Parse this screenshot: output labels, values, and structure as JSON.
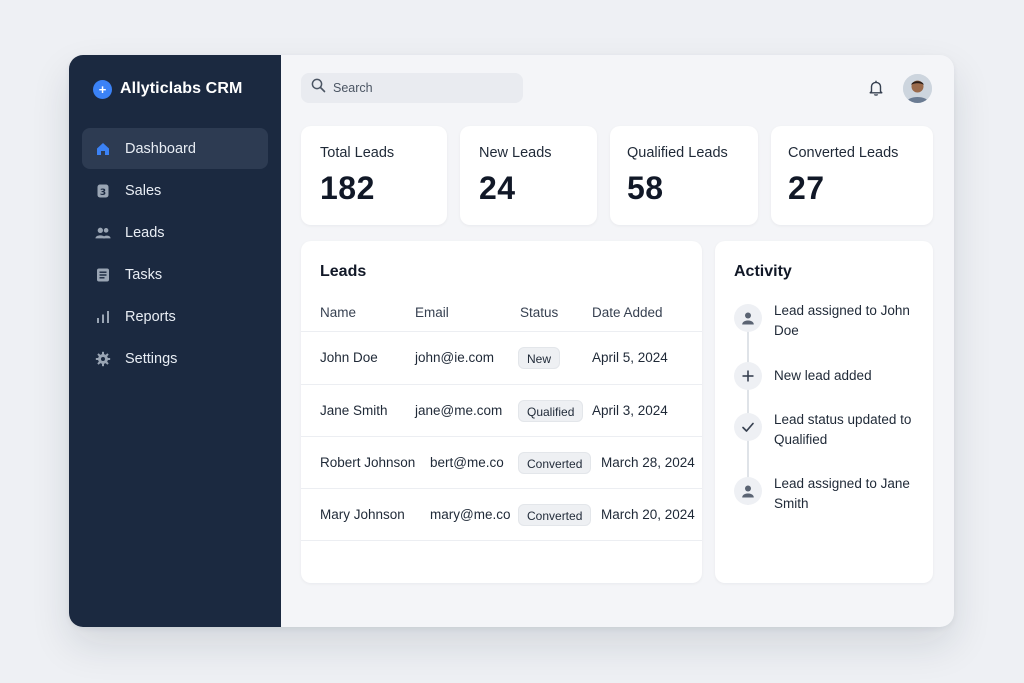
{
  "brand": {
    "name": "Allyticlabs CRM",
    "logo_glyph": "+",
    "accent": "#3b82f6"
  },
  "sidebar": {
    "items": [
      {
        "label": "Dashboard",
        "icon": "home-icon",
        "active": true
      },
      {
        "label": "Sales",
        "icon": "sales-icon",
        "active": false
      },
      {
        "label": "Leads",
        "icon": "users-icon",
        "active": false
      },
      {
        "label": "Tasks",
        "icon": "tasks-icon",
        "active": false
      },
      {
        "label": "Reports",
        "icon": "bar-chart-icon",
        "active": false
      },
      {
        "label": "Settings",
        "icon": "gear-icon",
        "active": false
      }
    ]
  },
  "header": {
    "search_placeholder": "Search"
  },
  "stats": [
    {
      "title": "Total Leads",
      "value": "182"
    },
    {
      "title": "New Leads",
      "value": "24"
    },
    {
      "title": "Qualified Leads",
      "value": "58"
    },
    {
      "title": "Converted Leads",
      "value": "27"
    }
  ],
  "leads": {
    "title": "Leads",
    "columns": [
      "Name",
      "Email",
      "Status",
      "Date Added"
    ],
    "rows": [
      {
        "name": "John Doe",
        "email": "john@ie.com",
        "status": "New",
        "date": "April 5, 2024"
      },
      {
        "name": "Jane Smith",
        "email": "jane@me.com",
        "status": "Qualified",
        "date": "April 3, 2024"
      },
      {
        "name": "Robert Johnson",
        "email": "bert@me.co",
        "status": "Converted",
        "date": "March 28, 2024"
      },
      {
        "name": "Mary Johnson",
        "email": "mary@me.co",
        "status": "Converted",
        "date": "March 20, 2024"
      }
    ]
  },
  "activity": {
    "title": "Activity",
    "items": [
      {
        "text": "Lead assigned to John Doe",
        "icon": "user-icon"
      },
      {
        "text": "New lead added",
        "icon": "plus-icon"
      },
      {
        "text": "Lead status updated to Qualified",
        "icon": "check-icon"
      },
      {
        "text": "Lead assigned to Jane Smith",
        "icon": "user-icon"
      }
    ]
  }
}
